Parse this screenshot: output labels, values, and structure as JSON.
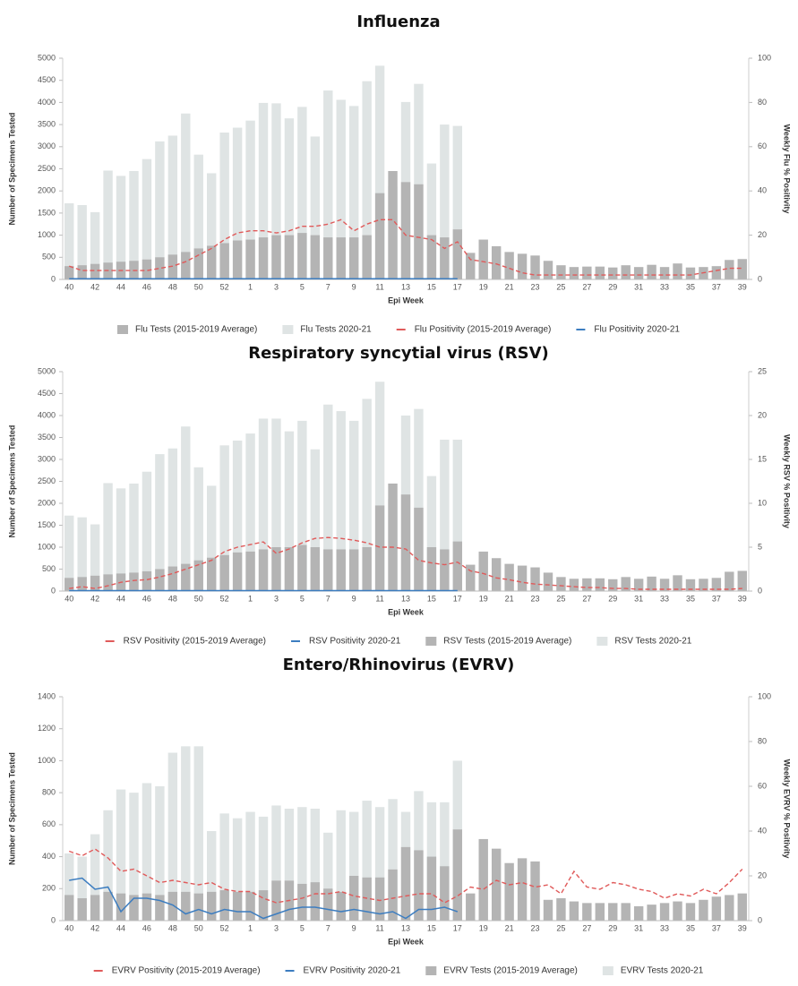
{
  "chart_data": [
    {
      "type": "combo",
      "title": "Influenza",
      "x_label": "Epi Week",
      "y_label": "Number of Specimens Tested",
      "y2_label": "Weekly Flu % Positivity",
      "categories": [
        "40",
        null,
        "42",
        null,
        "44",
        null,
        "46",
        null,
        "48",
        null,
        "50",
        null,
        "52",
        null,
        "1",
        null,
        "3",
        null,
        "5",
        null,
        "7",
        null,
        "9",
        null,
        "11",
        null,
        "13",
        null,
        "15",
        null,
        "17",
        null,
        "19",
        null,
        "21",
        null,
        "23",
        null,
        "25",
        null,
        "27",
        null,
        "29",
        null,
        "31",
        null,
        "33",
        null,
        "35",
        null,
        "37",
        null,
        "39"
      ],
      "ylim": [
        0,
        5000
      ],
      "yticks": [
        0,
        500,
        1000,
        1500,
        2000,
        2500,
        3000,
        3500,
        4000,
        4500,
        5000
      ],
      "y2lim": [
        0,
        100
      ],
      "y2ticks": [
        0,
        20,
        40,
        60,
        80,
        100
      ],
      "series": [
        {
          "name": "Flu Tests (2015-2019 Average)",
          "type": "bar",
          "color": "#b4b4b4",
          "values": [
            300,
            320,
            350,
            380,
            400,
            420,
            450,
            500,
            560,
            620,
            700,
            760,
            820,
            880,
            900,
            950,
            1000,
            1000,
            1050,
            1000,
            950,
            950,
            950,
            1000,
            1950,
            2450,
            2200,
            2150,
            1000,
            950,
            1130,
            600,
            900,
            750,
            620,
            580,
            540,
            420,
            320,
            280,
            290,
            290,
            270,
            320,
            280,
            330,
            280,
            360,
            270,
            280,
            300,
            440,
            460
          ]
        },
        {
          "name": "Flu Tests 2020-21",
          "type": "bar",
          "color": "#dfe4e4",
          "values": [
            1720,
            1680,
            1520,
            2460,
            2340,
            2450,
            2720,
            3120,
            3250,
            3750,
            2820,
            2400,
            3320,
            3430,
            3590,
            3990,
            3980,
            3640,
            3900,
            3230,
            4270,
            4060,
            3920,
            4480,
            4830,
            2100,
            4010,
            4420,
            2620,
            3500,
            3470,
            null,
            null,
            null,
            null,
            null,
            null,
            null,
            null,
            null,
            null,
            null,
            null,
            null,
            null,
            null,
            null,
            null,
            null,
            null,
            null,
            null,
            null
          ]
        },
        {
          "name": "Flu Positivity (2015-2019 Average)",
          "type": "line",
          "axis": "y2",
          "dash": true,
          "color": "#e05a5a",
          "values": [
            6,
            4,
            4,
            4,
            4,
            4,
            4,
            5,
            6,
            8,
            11,
            14,
            18,
            21,
            22,
            22,
            21,
            22,
            24,
            24,
            25,
            27,
            22,
            25,
            27,
            27,
            20,
            19,
            18,
            14,
            17,
            9,
            8,
            7,
            5,
            3,
            2,
            2,
            2,
            2,
            2,
            2,
            2,
            2,
            2,
            2,
            2,
            2,
            2,
            3,
            4,
            5,
            5
          ]
        },
        {
          "name": "Flu Positivity 2020-21",
          "type": "line",
          "axis": "y2",
          "dash": false,
          "color": "#3c7dc0",
          "values": [
            0.3,
            0.3,
            0.3,
            0.3,
            0.3,
            0.3,
            0.3,
            0.3,
            0.3,
            0.3,
            0.3,
            0.3,
            0.3,
            0.3,
            0.3,
            0.3,
            0.3,
            0.3,
            0.3,
            0.3,
            0.3,
            0.3,
            0.3,
            0.3,
            0.3,
            0.3,
            0.3,
            0.3,
            0.3,
            0.3,
            0.3,
            null,
            null,
            null,
            null,
            null,
            null,
            null,
            null,
            null,
            null,
            null,
            null,
            null,
            null,
            null,
            null,
            null,
            null,
            null,
            null,
            null,
            null
          ]
        }
      ]
    },
    {
      "type": "combo",
      "title": "Respiratory syncytial virus (RSV)",
      "x_label": "Epi Week",
      "y_label": "Number of Specimens Tested",
      "y2_label": "Weekly RSV % Positivity",
      "categories": [
        "40",
        null,
        "42",
        null,
        "44",
        null,
        "46",
        null,
        "48",
        null,
        "50",
        null,
        "52",
        null,
        "1",
        null,
        "3",
        null,
        "5",
        null,
        "7",
        null,
        "9",
        null,
        "11",
        null,
        "13",
        null,
        "15",
        null,
        "17",
        null,
        "19",
        null,
        "21",
        null,
        "23",
        null,
        "25",
        null,
        "27",
        null,
        "29",
        null,
        "31",
        null,
        "33",
        null,
        "35",
        null,
        "37",
        null,
        "39"
      ],
      "ylim": [
        0,
        5000
      ],
      "yticks": [
        0,
        500,
        1000,
        1500,
        2000,
        2500,
        3000,
        3500,
        4000,
        4500,
        5000
      ],
      "y2lim": [
        0,
        25
      ],
      "y2ticks": [
        0,
        5,
        10,
        15,
        20,
        25
      ],
      "series": [
        {
          "name": "RSV Positivity (2015-2019 Average)",
          "type": "line",
          "axis": "y2",
          "dash": true,
          "color": "#e05a5a",
          "values": [
            0.3,
            0.5,
            0.3,
            0.6,
            1,
            1.2,
            1.3,
            1.6,
            2,
            2.5,
            3,
            3.5,
            4.5,
            5,
            5.3,
            5.6,
            4.3,
            4.8,
            5.5,
            6,
            6.1,
            6,
            5.8,
            5.5,
            5,
            5,
            4.8,
            3.5,
            3.2,
            3,
            3.3,
            2.3,
            2,
            1.5,
            1.3,
            1,
            0.8,
            0.7,
            0.6,
            0.5,
            0.4,
            0.4,
            0.3,
            0.3,
            0.2,
            0.2,
            0.2,
            0.2,
            0.2,
            0.2,
            0.2,
            0.2,
            0.3
          ]
        },
        {
          "name": "RSV Positivity 2020-21",
          "type": "line",
          "axis": "y2",
          "dash": false,
          "color": "#3c7dc0",
          "values": [
            0.05,
            0.05,
            0.05,
            0.05,
            0.05,
            0.05,
            0.05,
            0.05,
            0.05,
            0.05,
            0.05,
            0.05,
            0.05,
            0.05,
            0.05,
            0.05,
            0.05,
            0.05,
            0.05,
            0.05,
            0.05,
            0.05,
            0.05,
            0.05,
            0.05,
            0.05,
            0.05,
            0.05,
            0.05,
            0.05,
            0.05,
            null,
            null,
            null,
            null,
            null,
            null,
            null,
            null,
            null,
            null,
            null,
            null,
            null,
            null,
            null,
            null,
            null,
            null,
            null,
            null,
            null,
            null
          ]
        },
        {
          "name": "RSV Tests (2015-2019 Average)",
          "type": "bar",
          "color": "#b4b4b4",
          "values": [
            300,
            320,
            350,
            380,
            400,
            420,
            450,
            500,
            560,
            620,
            700,
            760,
            820,
            880,
            900,
            950,
            1000,
            1000,
            1050,
            1000,
            950,
            950,
            950,
            1000,
            1950,
            2450,
            2200,
            1900,
            1000,
            950,
            1130,
            600,
            900,
            750,
            620,
            580,
            540,
            420,
            320,
            280,
            290,
            290,
            270,
            320,
            280,
            330,
            280,
            360,
            270,
            280,
            300,
            440,
            460
          ]
        },
        {
          "name": "RSV Tests 2020-21",
          "type": "bar",
          "color": "#dfe4e4",
          "values": [
            1720,
            1680,
            1520,
            2460,
            2340,
            2450,
            2720,
            3120,
            3250,
            3750,
            2820,
            2400,
            3320,
            3430,
            3590,
            3930,
            3930,
            3640,
            3880,
            3230,
            4250,
            4100,
            3880,
            4380,
            4770,
            2100,
            4000,
            4150,
            2620,
            3450,
            3450,
            null,
            null,
            null,
            null,
            null,
            null,
            null,
            null,
            null,
            null,
            null,
            null,
            null,
            null,
            null,
            null,
            null,
            null,
            null,
            null,
            null,
            null
          ]
        }
      ]
    },
    {
      "type": "combo",
      "title": "Entero/Rhinovirus (EVRV)",
      "x_label": "Epi Week",
      "y_label": "Number of Specimens Tested",
      "y2_label": "Weekly EVRV % Positivity",
      "categories": [
        "40",
        null,
        "42",
        null,
        "44",
        null,
        "46",
        null,
        "48",
        null,
        "50",
        null,
        "52",
        null,
        "1",
        null,
        "3",
        null,
        "5",
        null,
        "7",
        null,
        "9",
        null,
        "11",
        null,
        "13",
        null,
        "15",
        null,
        "17",
        null,
        "19",
        null,
        "21",
        null,
        "23",
        null,
        "25",
        null,
        "27",
        null,
        "29",
        null,
        "31",
        null,
        "33",
        null,
        "35",
        null,
        "37",
        null,
        "39"
      ],
      "ylim": [
        0,
        1400
      ],
      "yticks": [
        0,
        200,
        400,
        600,
        800,
        1000,
        1200,
        1400
      ],
      "y2lim": [
        0,
        100
      ],
      "y2ticks": [
        0,
        20,
        40,
        60,
        80,
        100
      ],
      "series": [
        {
          "name": "EVRV Positivity (2015-2019 Average)",
          "type": "line",
          "axis": "y2",
          "dash": true,
          "color": "#e05a5a",
          "values": [
            31,
            29,
            32,
            28,
            22,
            23,
            20,
            17,
            18,
            17,
            16,
            17,
            14,
            13,
            13,
            10,
            8,
            9,
            10,
            12,
            12,
            13,
            11,
            10,
            9,
            10,
            11,
            12,
            12,
            8,
            11,
            15,
            14,
            18,
            16,
            17,
            15,
            16,
            12,
            22,
            15,
            14,
            17,
            16,
            14,
            13,
            10,
            12,
            11,
            14,
            12,
            17,
            23
          ]
        },
        {
          "name": "EVRV Positivity 2020-21",
          "type": "line",
          "axis": "y2",
          "dash": false,
          "color": "#3c7dc0",
          "values": [
            18,
            19,
            14,
            15,
            4,
            10,
            10,
            9,
            7,
            3,
            5,
            3,
            5,
            4,
            4,
            1,
            3,
            5,
            6,
            6,
            5,
            4,
            5,
            4,
            3,
            4,
            1,
            5,
            5,
            6,
            4,
            null,
            null,
            null,
            null,
            null,
            null,
            null,
            null,
            null,
            null,
            null,
            null,
            null,
            null,
            null,
            null,
            null,
            null,
            null,
            null,
            null,
            null
          ]
        },
        {
          "name": "EVRV Tests (2015-2019 Average)",
          "type": "bar",
          "color": "#b4b4b4",
          "values": [
            160,
            140,
            160,
            180,
            170,
            160,
            170,
            160,
            180,
            180,
            170,
            180,
            190,
            180,
            180,
            190,
            250,
            250,
            230,
            240,
            200,
            180,
            280,
            270,
            270,
            320,
            460,
            440,
            400,
            340,
            570,
            170,
            510,
            450,
            360,
            390,
            370,
            130,
            140,
            120,
            110,
            110,
            110,
            110,
            90,
            100,
            110,
            120,
            110,
            130,
            150,
            160,
            170
          ]
        },
        {
          "name": "EVRV Tests 2020-21",
          "type": "bar",
          "color": "#dfe4e4",
          "values": [
            420,
            400,
            540,
            690,
            820,
            800,
            860,
            840,
            1050,
            1090,
            1090,
            560,
            670,
            640,
            680,
            650,
            720,
            700,
            710,
            700,
            550,
            690,
            680,
            750,
            710,
            760,
            680,
            810,
            740,
            740,
            1000,
            null,
            null,
            null,
            null,
            null,
            null,
            null,
            null,
            null,
            null,
            null,
            null,
            null,
            null,
            null,
            null,
            null,
            null,
            null,
            null,
            null,
            null
          ]
        }
      ]
    }
  ]
}
